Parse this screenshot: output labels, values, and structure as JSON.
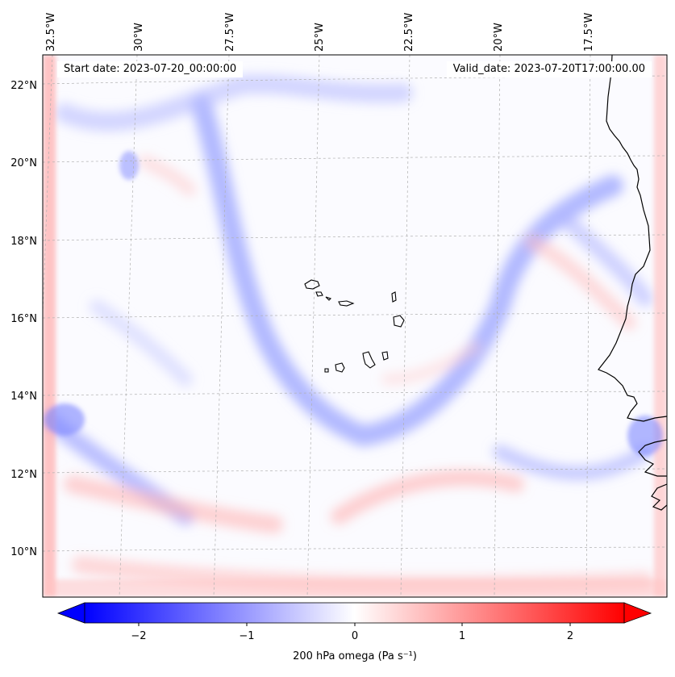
{
  "header": {
    "start_date": "Start date: 2023-07-20_00:00:00",
    "valid_date": "Valid_date: 2023-07-20T17:00:00.00"
  },
  "axes": {
    "lon_labels": [
      "32.5°W",
      "30°W",
      "27.5°W",
      "25°W",
      "22.5°W",
      "20°W",
      "17.5°W"
    ],
    "lat_labels": [
      "22°N",
      "20°N",
      "18°N",
      "16°N",
      "14°N",
      "12°N",
      "10°N"
    ]
  },
  "colorbar": {
    "label": "200 hPa omega (Pa s⁻¹)",
    "ticks": [
      "−2",
      "−1",
      "0",
      "1",
      "2"
    ],
    "tick_values": [
      -2,
      -1,
      0,
      1,
      2
    ],
    "range": [
      -2.5,
      2.5
    ],
    "colormap": "bwr",
    "extend": "both"
  },
  "colors": {
    "negative": "#0000ff",
    "zero": "#ffffff",
    "positive": "#ff0000",
    "coastline": "#000000",
    "gridline": "#b0b0b0"
  }
}
